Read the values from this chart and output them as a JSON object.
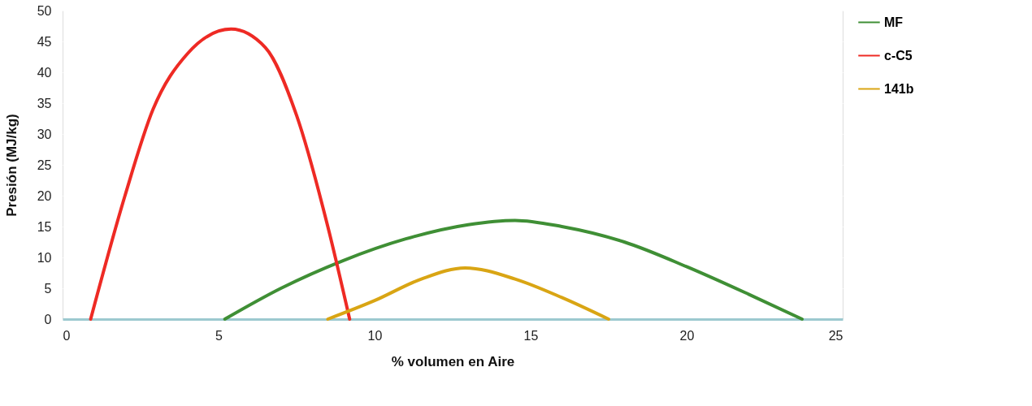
{
  "chart_data": {
    "type": "line",
    "xlabel": "% volumen en Aire",
    "ylabel": "Presión (MJ/kg)",
    "xlim": [
      0,
      25
    ],
    "xticks": [
      0,
      5,
      10,
      15,
      20,
      25
    ],
    "ylim": [
      0,
      50
    ],
    "yticks": [
      0,
      5,
      10,
      15,
      20,
      25,
      30,
      35,
      40,
      45,
      50
    ],
    "grid": "y",
    "legend": "right",
    "marker": "none",
    "line_style": "solid",
    "series": [
      {
        "name": "MF",
        "color": "#3f8f35",
        "x": [
          5.2,
          7,
          9,
          11,
          13,
          14.5,
          16,
          18,
          20,
          22,
          23.7
        ],
        "values": [
          0,
          5,
          9.5,
          13,
          15.3,
          16,
          15,
          12.5,
          8.5,
          4,
          0
        ]
      },
      {
        "name": "c-C5",
        "color": "#ee2a24",
        "x": [
          0.9,
          2,
          2.9,
          4,
          5.4,
          6.5,
          7.5,
          8.5,
          9.2
        ],
        "values": [
          0,
          20,
          34,
          43,
          47,
          44,
          33,
          15,
          0
        ]
      },
      {
        "name": "141b",
        "color": "#d9a514",
        "x": [
          8.5,
          10,
          11.5,
          12.9,
          14.5,
          16,
          17.5
        ],
        "values": [
          0,
          3,
          6.5,
          8.3,
          6.5,
          3.5,
          0
        ]
      }
    ]
  }
}
